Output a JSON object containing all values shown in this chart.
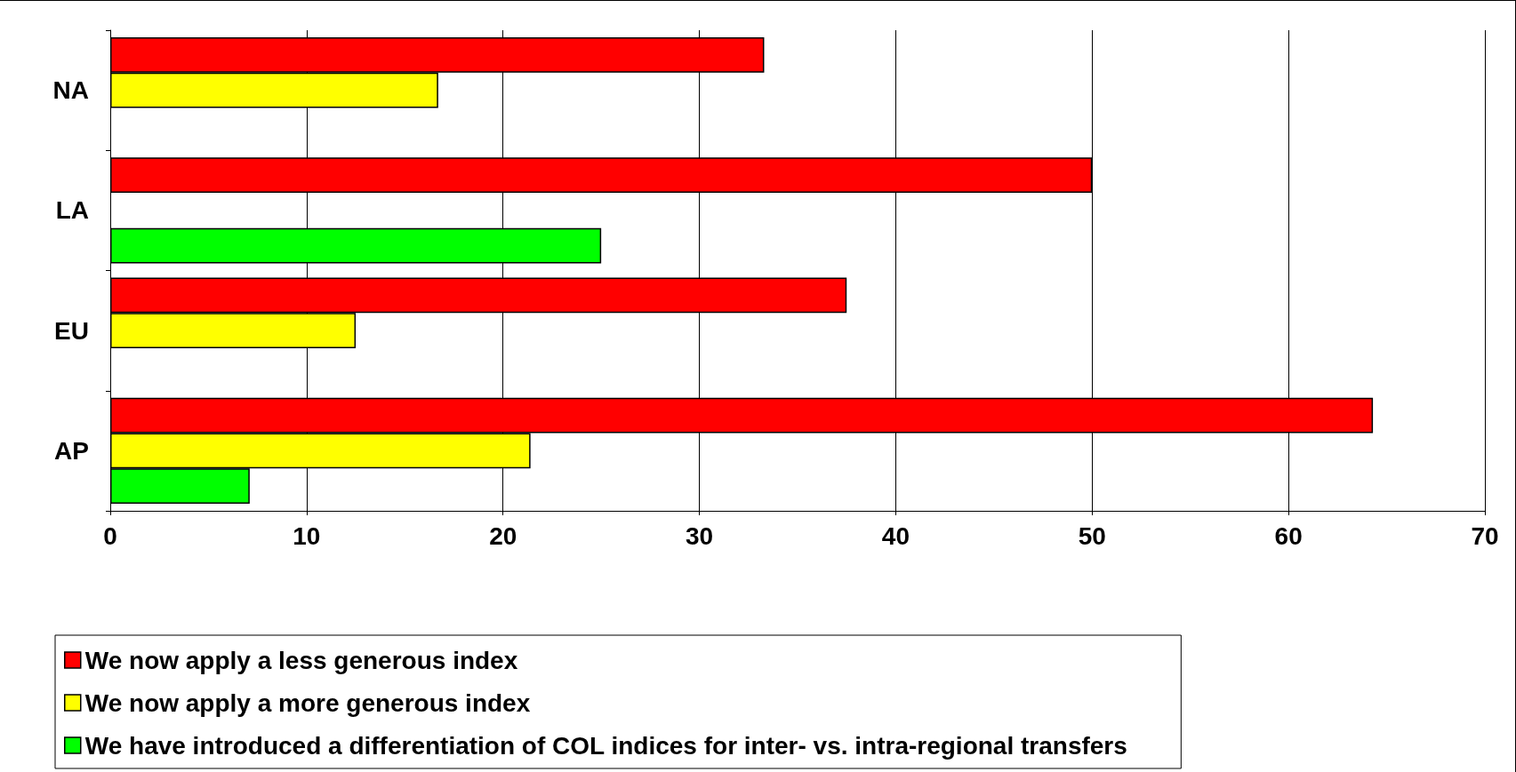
{
  "chart_data": {
    "type": "bar",
    "orientation": "horizontal",
    "categories": [
      "NA",
      "LA",
      "EU",
      "AP"
    ],
    "series": [
      {
        "name": "We now apply a less generous index",
        "color": "#ff0000",
        "values": [
          33.3,
          50,
          37.5,
          64.3
        ]
      },
      {
        "name": "We now apply a more generous index",
        "color": "#ffff00",
        "values": [
          16.7,
          null,
          12.5,
          21.4
        ]
      },
      {
        "name": "We have introduced a differentiation of COL indices for inter- vs. intra-regional transfers",
        "color": "#00ff00",
        "values": [
          null,
          25,
          null,
          7.1
        ]
      }
    ],
    "xlim": [
      0,
      70
    ],
    "xticks": [
      0,
      10,
      20,
      30,
      40,
      50,
      60,
      70
    ],
    "grid": "x",
    "legend": "bottom"
  }
}
